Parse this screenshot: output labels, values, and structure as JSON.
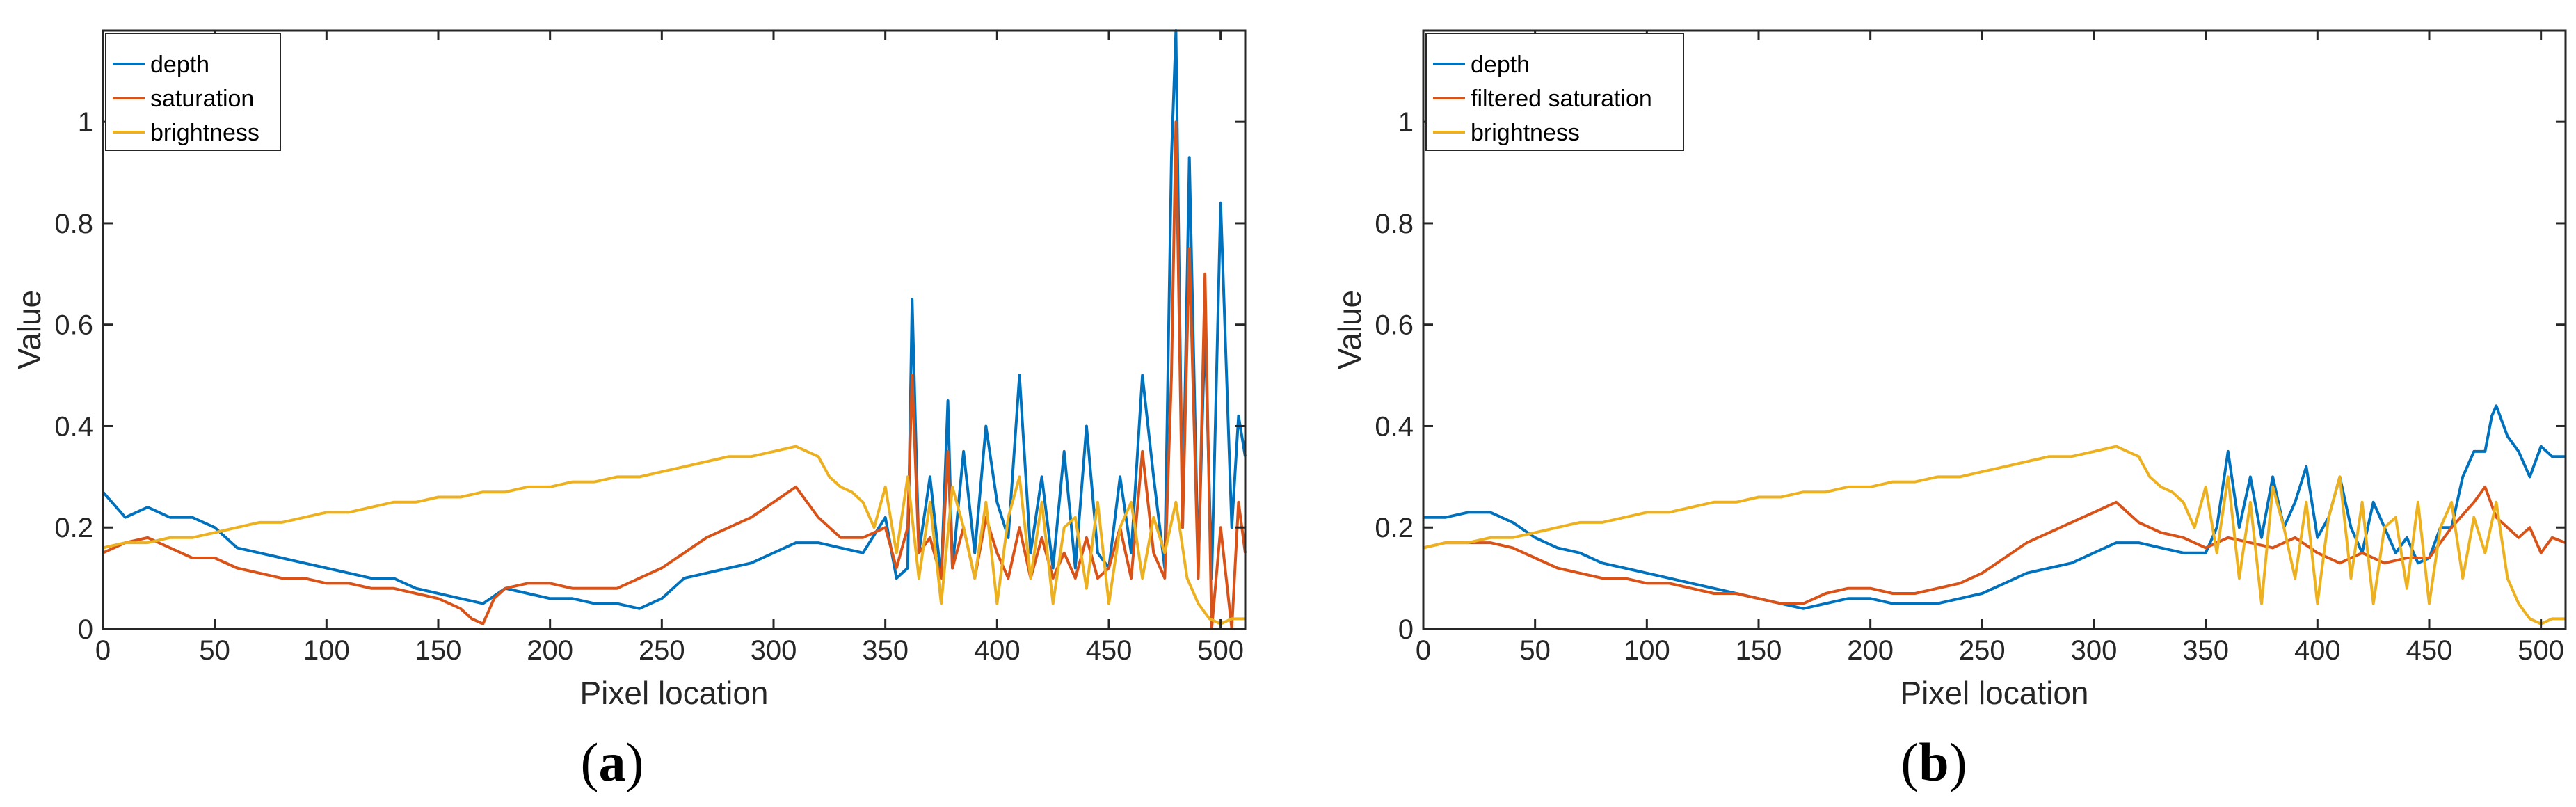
{
  "chart_data": [
    {
      "type": "line",
      "panel_label": "a",
      "xlabel": "Pixel location",
      "ylabel": "Value",
      "xlim": [
        0,
        511
      ],
      "ylim": [
        0,
        1.18
      ],
      "xticks": [
        0,
        50,
        100,
        150,
        200,
        250,
        300,
        350,
        400,
        450,
        500
      ],
      "yticks": [
        0,
        0.2,
        0.4,
        0.6,
        0.8,
        1
      ],
      "ytick_labels": [
        "0",
        "0.2",
        "0.4",
        "0.6",
        "0.8",
        "1"
      ],
      "legend_position": "top-left",
      "series": [
        {
          "name": "depth",
          "color": "#0072BD",
          "x": [
            0,
            10,
            20,
            30,
            40,
            50,
            60,
            70,
            80,
            90,
            100,
            110,
            120,
            130,
            140,
            150,
            160,
            170,
            180,
            190,
            200,
            210,
            220,
            230,
            240,
            250,
            260,
            270,
            280,
            290,
            300,
            310,
            320,
            330,
            340,
            350,
            355,
            360,
            362,
            365,
            370,
            375,
            378,
            380,
            385,
            390,
            395,
            400,
            405,
            410,
            415,
            420,
            425,
            430,
            435,
            440,
            445,
            450,
            455,
            460,
            465,
            470,
            475,
            478,
            480,
            483,
            486,
            490,
            493,
            496,
            500,
            505,
            508,
            511
          ],
          "values": [
            0.27,
            0.22,
            0.24,
            0.22,
            0.22,
            0.2,
            0.16,
            0.15,
            0.14,
            0.13,
            0.12,
            0.11,
            0.1,
            0.1,
            0.08,
            0.07,
            0.06,
            0.05,
            0.08,
            0.07,
            0.06,
            0.06,
            0.05,
            0.05,
            0.04,
            0.06,
            0.1,
            0.11,
            0.12,
            0.13,
            0.15,
            0.17,
            0.17,
            0.16,
            0.15,
            0.22,
            0.1,
            0.12,
            0.65,
            0.15,
            0.3,
            0.1,
            0.45,
            0.12,
            0.35,
            0.15,
            0.4,
            0.25,
            0.18,
            0.5,
            0.15,
            0.3,
            0.12,
            0.35,
            0.12,
            0.4,
            0.15,
            0.12,
            0.3,
            0.15,
            0.5,
            0.3,
            0.12,
            0.93,
            1.18,
            0.2,
            0.93,
            0.12,
            0.6,
            0.1,
            0.84,
            0.2,
            0.42,
            0.34
          ]
        },
        {
          "name": "saturation",
          "color": "#D95319",
          "x": [
            0,
            10,
            20,
            30,
            40,
            50,
            60,
            70,
            80,
            90,
            100,
            110,
            120,
            130,
            140,
            150,
            160,
            165,
            170,
            175,
            180,
            190,
            200,
            210,
            220,
            230,
            240,
            250,
            260,
            270,
            280,
            290,
            300,
            310,
            320,
            330,
            340,
            350,
            355,
            360,
            362,
            365,
            370,
            375,
            378,
            380,
            385,
            390,
            395,
            400,
            405,
            410,
            415,
            420,
            425,
            430,
            435,
            440,
            445,
            450,
            455,
            460,
            465,
            470,
            475,
            478,
            480,
            483,
            486,
            490,
            493,
            496,
            500,
            505,
            508,
            511
          ],
          "values": [
            0.15,
            0.17,
            0.18,
            0.16,
            0.14,
            0.14,
            0.12,
            0.11,
            0.1,
            0.1,
            0.09,
            0.09,
            0.08,
            0.08,
            0.07,
            0.06,
            0.04,
            0.02,
            0.01,
            0.06,
            0.08,
            0.09,
            0.09,
            0.08,
            0.08,
            0.08,
            0.1,
            0.12,
            0.15,
            0.18,
            0.2,
            0.22,
            0.25,
            0.28,
            0.22,
            0.18,
            0.18,
            0.2,
            0.12,
            0.2,
            0.5,
            0.15,
            0.18,
            0.1,
            0.35,
            0.12,
            0.2,
            0.1,
            0.22,
            0.15,
            0.1,
            0.2,
            0.1,
            0.18,
            0.1,
            0.15,
            0.1,
            0.18,
            0.1,
            0.12,
            0.2,
            0.1,
            0.35,
            0.15,
            0.1,
            0.5,
            1.0,
            0.2,
            0.75,
            0.1,
            0.7,
            0.0,
            0.2,
            0.0,
            0.25,
            0.15
          ]
        },
        {
          "name": "brightness",
          "color": "#EDB120",
          "x": [
            0,
            10,
            20,
            30,
            40,
            50,
            60,
            70,
            80,
            90,
            100,
            110,
            120,
            130,
            140,
            150,
            160,
            170,
            180,
            190,
            200,
            210,
            220,
            230,
            240,
            250,
            260,
            270,
            280,
            290,
            300,
            310,
            315,
            320,
            325,
            330,
            335,
            340,
            345,
            350,
            355,
            360,
            365,
            370,
            375,
            380,
            385,
            390,
            395,
            400,
            405,
            410,
            415,
            420,
            425,
            430,
            435,
            440,
            445,
            450,
            455,
            460,
            465,
            470,
            475,
            480,
            485,
            490,
            495,
            500,
            505,
            511
          ],
          "values": [
            0.16,
            0.17,
            0.17,
            0.18,
            0.18,
            0.19,
            0.2,
            0.21,
            0.21,
            0.22,
            0.23,
            0.23,
            0.24,
            0.25,
            0.25,
            0.26,
            0.26,
            0.27,
            0.27,
            0.28,
            0.28,
            0.29,
            0.29,
            0.3,
            0.3,
            0.31,
            0.32,
            0.33,
            0.34,
            0.34,
            0.35,
            0.36,
            0.35,
            0.34,
            0.3,
            0.28,
            0.27,
            0.25,
            0.2,
            0.28,
            0.15,
            0.3,
            0.1,
            0.25,
            0.05,
            0.28,
            0.2,
            0.1,
            0.25,
            0.05,
            0.22,
            0.3,
            0.1,
            0.25,
            0.05,
            0.2,
            0.22,
            0.08,
            0.25,
            0.05,
            0.2,
            0.25,
            0.1,
            0.22,
            0.15,
            0.25,
            0.1,
            0.05,
            0.02,
            0.01,
            0.02,
            0.02
          ]
        }
      ]
    },
    {
      "type": "line",
      "panel_label": "b",
      "xlabel": "Pixel location",
      "ylabel": "Value",
      "xlim": [
        0,
        511
      ],
      "ylim": [
        0,
        1.18
      ],
      "xticks": [
        0,
        50,
        100,
        150,
        200,
        250,
        300,
        350,
        400,
        450,
        500
      ],
      "yticks": [
        0,
        0.2,
        0.4,
        0.6,
        0.8,
        1
      ],
      "ytick_labels": [
        "0",
        "0.2",
        "0.4",
        "0.6",
        "0.8",
        "1"
      ],
      "legend_position": "top-left",
      "series": [
        {
          "name": "depth",
          "color": "#0072BD",
          "x": [
            0,
            10,
            20,
            30,
            40,
            50,
            60,
            70,
            80,
            90,
            100,
            110,
            120,
            130,
            140,
            150,
            160,
            170,
            180,
            190,
            200,
            210,
            220,
            230,
            240,
            250,
            260,
            270,
            280,
            290,
            300,
            310,
            320,
            330,
            340,
            350,
            355,
            360,
            365,
            370,
            375,
            380,
            385,
            390,
            395,
            400,
            405,
            410,
            415,
            420,
            425,
            430,
            435,
            440,
            445,
            450,
            455,
            460,
            465,
            470,
            475,
            478,
            480,
            485,
            490,
            495,
            500,
            505,
            511
          ],
          "values": [
            0.22,
            0.22,
            0.23,
            0.23,
            0.21,
            0.18,
            0.16,
            0.15,
            0.13,
            0.12,
            0.11,
            0.1,
            0.09,
            0.08,
            0.07,
            0.06,
            0.05,
            0.04,
            0.05,
            0.06,
            0.06,
            0.05,
            0.05,
            0.05,
            0.06,
            0.07,
            0.09,
            0.11,
            0.12,
            0.13,
            0.15,
            0.17,
            0.17,
            0.16,
            0.15,
            0.15,
            0.2,
            0.35,
            0.2,
            0.3,
            0.18,
            0.3,
            0.2,
            0.25,
            0.32,
            0.18,
            0.22,
            0.3,
            0.2,
            0.15,
            0.25,
            0.2,
            0.15,
            0.18,
            0.13,
            0.14,
            0.2,
            0.2,
            0.3,
            0.35,
            0.35,
            0.42,
            0.44,
            0.38,
            0.35,
            0.3,
            0.36,
            0.34,
            0.34
          ]
        },
        {
          "name": "filtered saturation",
          "color": "#D95319",
          "x": [
            0,
            10,
            20,
            30,
            40,
            50,
            60,
            70,
            80,
            90,
            100,
            110,
            120,
            130,
            140,
            150,
            160,
            170,
            180,
            190,
            200,
            210,
            220,
            230,
            240,
            250,
            260,
            270,
            280,
            290,
            300,
            310,
            320,
            330,
            340,
            350,
            360,
            370,
            380,
            390,
            400,
            410,
            420,
            430,
            440,
            450,
            460,
            470,
            475,
            480,
            485,
            490,
            495,
            500,
            505,
            511
          ],
          "values": [
            0.16,
            0.17,
            0.17,
            0.17,
            0.16,
            0.14,
            0.12,
            0.11,
            0.1,
            0.1,
            0.09,
            0.09,
            0.08,
            0.07,
            0.07,
            0.06,
            0.05,
            0.05,
            0.07,
            0.08,
            0.08,
            0.07,
            0.07,
            0.08,
            0.09,
            0.11,
            0.14,
            0.17,
            0.19,
            0.21,
            0.23,
            0.25,
            0.21,
            0.19,
            0.18,
            0.16,
            0.18,
            0.17,
            0.16,
            0.18,
            0.15,
            0.13,
            0.15,
            0.13,
            0.14,
            0.14,
            0.2,
            0.25,
            0.28,
            0.22,
            0.2,
            0.18,
            0.2,
            0.15,
            0.18,
            0.17
          ]
        },
        {
          "name": "brightness",
          "color": "#EDB120",
          "x": [
            0,
            10,
            20,
            30,
            40,
            50,
            60,
            70,
            80,
            90,
            100,
            110,
            120,
            130,
            140,
            150,
            160,
            170,
            180,
            190,
            200,
            210,
            220,
            230,
            240,
            250,
            260,
            270,
            280,
            290,
            300,
            310,
            315,
            320,
            325,
            330,
            335,
            340,
            345,
            350,
            355,
            360,
            365,
            370,
            375,
            380,
            385,
            390,
            395,
            400,
            405,
            410,
            415,
            420,
            425,
            430,
            435,
            440,
            445,
            450,
            455,
            460,
            465,
            470,
            475,
            480,
            485,
            490,
            495,
            500,
            505,
            511
          ],
          "values": [
            0.16,
            0.17,
            0.17,
            0.18,
            0.18,
            0.19,
            0.2,
            0.21,
            0.21,
            0.22,
            0.23,
            0.23,
            0.24,
            0.25,
            0.25,
            0.26,
            0.26,
            0.27,
            0.27,
            0.28,
            0.28,
            0.29,
            0.29,
            0.3,
            0.3,
            0.31,
            0.32,
            0.33,
            0.34,
            0.34,
            0.35,
            0.36,
            0.35,
            0.34,
            0.3,
            0.28,
            0.27,
            0.25,
            0.2,
            0.28,
            0.15,
            0.3,
            0.1,
            0.25,
            0.05,
            0.28,
            0.2,
            0.1,
            0.25,
            0.05,
            0.22,
            0.3,
            0.1,
            0.25,
            0.05,
            0.2,
            0.22,
            0.08,
            0.25,
            0.05,
            0.2,
            0.25,
            0.1,
            0.22,
            0.15,
            0.25,
            0.1,
            0.05,
            0.02,
            0.01,
            0.02,
            0.02
          ]
        }
      ]
    }
  ]
}
